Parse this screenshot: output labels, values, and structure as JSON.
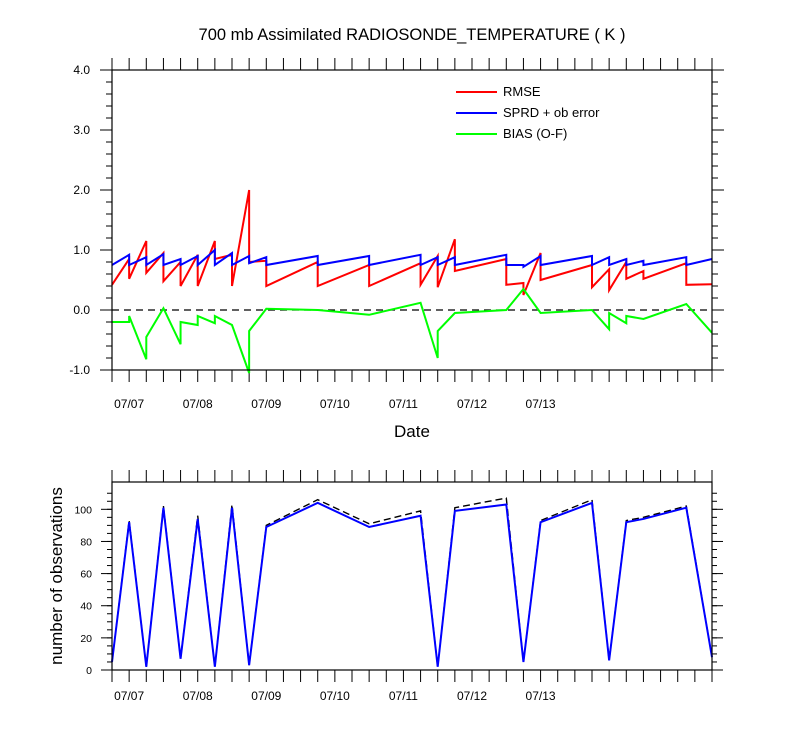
{
  "chart_data": [
    {
      "type": "line",
      "title": "700 mb Assimilated RADIOSONDE_TEMPERATURE ( K )",
      "xlabel": "Date",
      "ylabel": "",
      "ylim": [
        -1.0,
        4.0
      ],
      "yticks": [
        "4.0",
        "3.0",
        "2.0",
        "1.0",
        "0.0",
        "-1.0"
      ],
      "x_tick_labels": [
        "07/07",
        "07/08",
        "07/09",
        "07/10",
        "07/11",
        "07/12",
        "07/13"
      ],
      "x_range": [
        "07/06 18Z",
        "07/13 21Z"
      ],
      "zero_line": "dashed",
      "legend_position": "top-right",
      "series": [
        {
          "name": "RMSE",
          "color": "#ff0000",
          "points": [
            [
              0,
              0.42
            ],
            [
              1,
              0.85
            ],
            [
              1,
              0.52
            ],
            [
              2,
              1.15
            ],
            [
              2,
              0.62
            ],
            [
              3,
              0.95
            ],
            [
              3,
              0.48
            ],
            [
              4,
              0.8
            ],
            [
              4,
              0.4
            ],
            [
              5,
              0.92
            ],
            [
              5,
              0.4
            ],
            [
              6,
              1.15
            ],
            [
              6,
              0.85
            ],
            [
              7,
              0.92
            ],
            [
              7,
              0.4
            ],
            [
              8,
              2.0
            ],
            [
              8,
              0.8
            ],
            [
              9,
              0.82
            ],
            [
              9,
              0.4
            ],
            [
              12,
              0.8
            ],
            [
              12,
              0.4
            ],
            [
              15,
              0.75
            ],
            [
              15,
              0.4
            ],
            [
              18,
              0.78
            ],
            [
              18,
              0.42
            ],
            [
              19,
              0.9
            ],
            [
              19,
              0.38
            ],
            [
              20,
              1.18
            ],
            [
              20,
              0.65
            ],
            [
              23,
              0.85
            ],
            [
              23,
              0.42
            ],
            [
              24,
              0.45
            ],
            [
              24,
              0.25
            ],
            [
              25,
              0.95
            ],
            [
              25,
              0.5
            ],
            [
              28,
              0.75
            ],
            [
              28,
              0.38
            ],
            [
              29,
              0.68
            ],
            [
              29,
              0.33
            ],
            [
              30,
              0.8
            ],
            [
              30,
              0.52
            ],
            [
              31,
              0.65
            ],
            [
              31,
              0.52
            ],
            [
              33.5,
              0.78
            ],
            [
              33.5,
              0.42
            ],
            [
              35,
              0.43
            ]
          ]
        },
        {
          "name": "SPRD + ob error",
          "color": "#0000ff",
          "points": [
            [
              0,
              0.75
            ],
            [
              1,
              0.92
            ],
            [
              1,
              0.75
            ],
            [
              2,
              0.88
            ],
            [
              2,
              0.75
            ],
            [
              3,
              0.93
            ],
            [
              3,
              0.75
            ],
            [
              4,
              0.85
            ],
            [
              4,
              0.75
            ],
            [
              5,
              0.9
            ],
            [
              5,
              0.75
            ],
            [
              6,
              1.0
            ],
            [
              6,
              0.75
            ],
            [
              7,
              0.95
            ],
            [
              7,
              0.75
            ],
            [
              8,
              0.9
            ],
            [
              8,
              0.78
            ],
            [
              9,
              0.88
            ],
            [
              9,
              0.75
            ],
            [
              12,
              0.9
            ],
            [
              12,
              0.75
            ],
            [
              15,
              0.9
            ],
            [
              15,
              0.75
            ],
            [
              18,
              0.92
            ],
            [
              18,
              0.75
            ],
            [
              19,
              0.88
            ],
            [
              19,
              0.75
            ],
            [
              20,
              0.88
            ],
            [
              20,
              0.75
            ],
            [
              23,
              0.92
            ],
            [
              23,
              0.75
            ],
            [
              24,
              0.75
            ],
            [
              24,
              0.72
            ],
            [
              25,
              0.9
            ],
            [
              25,
              0.75
            ],
            [
              28,
              0.9
            ],
            [
              28,
              0.75
            ],
            [
              29,
              0.88
            ],
            [
              29,
              0.75
            ],
            [
              30,
              0.85
            ],
            [
              30,
              0.75
            ],
            [
              31,
              0.82
            ],
            [
              31,
              0.75
            ],
            [
              33.5,
              0.88
            ],
            [
              33.5,
              0.75
            ],
            [
              35,
              0.85
            ]
          ]
        },
        {
          "name": "BIAS (O-F)",
          "color": "#00ff00",
          "points": [
            [
              0,
              -0.2
            ],
            [
              1,
              -0.2
            ],
            [
              1,
              -0.1
            ],
            [
              2,
              -0.82
            ],
            [
              2,
              -0.45
            ],
            [
              3,
              0.03
            ],
            [
              4,
              -0.57
            ],
            [
              4,
              -0.2
            ],
            [
              5,
              -0.25
            ],
            [
              5,
              -0.1
            ],
            [
              6,
              -0.22
            ],
            [
              6,
              -0.1
            ],
            [
              7,
              -0.25
            ],
            [
              8,
              -1.05
            ],
            [
              8,
              -0.35
            ],
            [
              9,
              0.02
            ],
            [
              12,
              0.0
            ],
            [
              15,
              -0.08
            ],
            [
              18,
              0.12
            ],
            [
              19,
              -0.8
            ],
            [
              19,
              -0.35
            ],
            [
              20,
              -0.05
            ],
            [
              23,
              0.0
            ],
            [
              24,
              0.35
            ],
            [
              25,
              -0.05
            ],
            [
              28,
              0.0
            ],
            [
              29,
              -0.32
            ],
            [
              29,
              -0.05
            ],
            [
              30,
              -0.22
            ],
            [
              30,
              -0.1
            ],
            [
              31,
              -0.15
            ],
            [
              33.5,
              0.1
            ],
            [
              35,
              -0.38
            ]
          ]
        }
      ]
    },
    {
      "type": "line",
      "title": "",
      "xlabel": "",
      "ylabel": "number of observations",
      "ylim": [
        0,
        117
      ],
      "yticks": [
        "0",
        "20",
        "40",
        "60",
        "80",
        "100"
      ],
      "x_tick_labels": [
        "07/07",
        "07/08",
        "07/09",
        "07/10",
        "07/11",
        "07/12",
        "07/13"
      ],
      "series": [
        {
          "name": "",
          "style": "dashed",
          "color": "#000000",
          "points": [
            [
              0,
              5
            ],
            [
              1,
              93
            ],
            [
              2,
              2
            ],
            [
              3,
              102
            ],
            [
              4,
              7
            ],
            [
              5,
              96
            ],
            [
              6,
              2
            ],
            [
              7,
              103
            ],
            [
              8,
              3
            ],
            [
              9,
              90
            ],
            [
              12,
              106
            ],
            [
              15,
              91
            ],
            [
              18,
              99
            ],
            [
              19,
              2
            ],
            [
              20,
              101
            ],
            [
              23,
              107
            ],
            [
              24,
              5
            ],
            [
              25,
              93
            ],
            [
              28,
              106
            ],
            [
              29,
              6
            ],
            [
              30,
              93
            ],
            [
              31,
              95
            ],
            [
              33.5,
              102
            ],
            [
              35,
              8
            ]
          ]
        },
        {
          "name": "",
          "style": "solid",
          "color": "#0000ff",
          "points": [
            [
              0,
              5
            ],
            [
              1,
              92
            ],
            [
              2,
              2
            ],
            [
              3,
              101
            ],
            [
              4,
              7
            ],
            [
              5,
              94
            ],
            [
              6,
              2
            ],
            [
              7,
              101
            ],
            [
              8,
              3
            ],
            [
              9,
              89
            ],
            [
              12,
              104
            ],
            [
              15,
              89
            ],
            [
              18,
              96
            ],
            [
              19,
              2
            ],
            [
              20,
              99
            ],
            [
              23,
              103
            ],
            [
              24,
              5
            ],
            [
              25,
              92
            ],
            [
              28,
              104
            ],
            [
              29,
              6
            ],
            [
              30,
              92
            ],
            [
              31,
              94
            ],
            [
              33.5,
              101
            ],
            [
              35,
              8
            ]
          ]
        }
      ]
    }
  ]
}
